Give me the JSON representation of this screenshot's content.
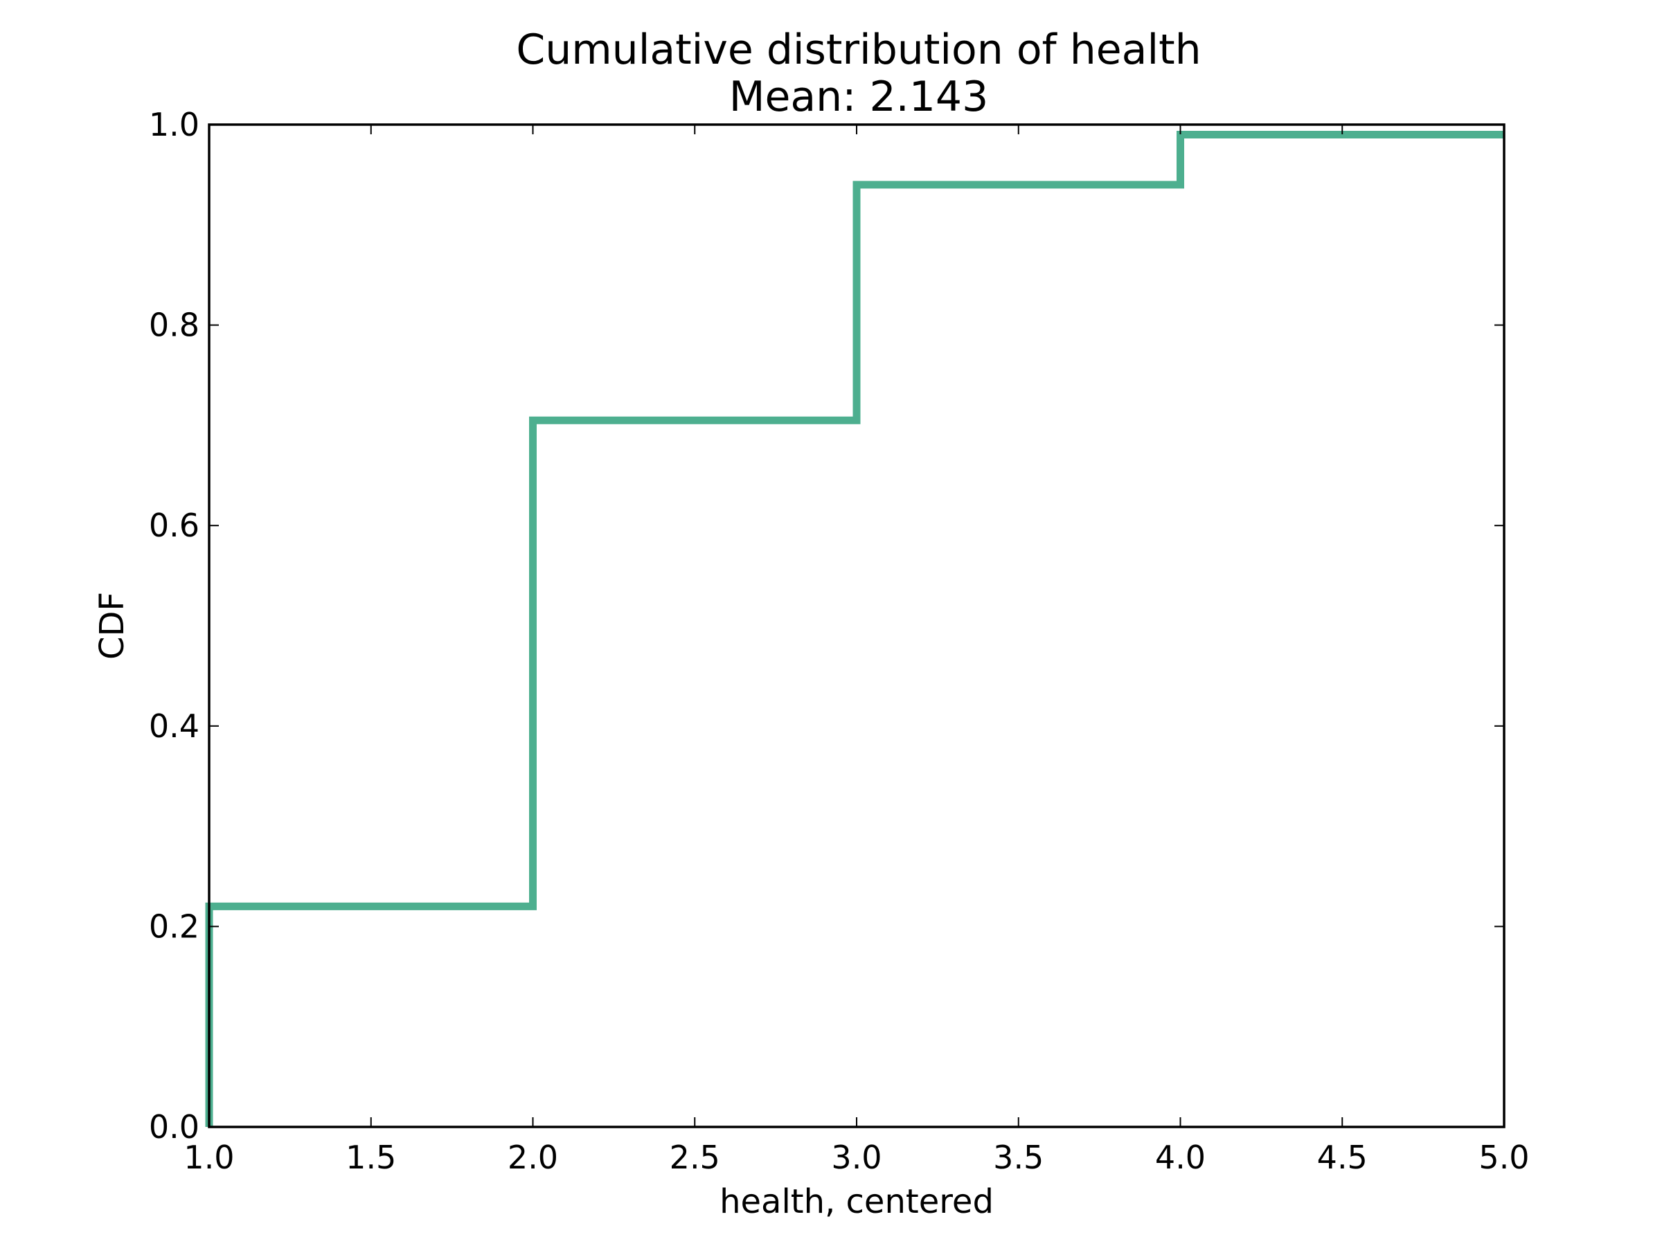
{
  "chart_data": {
    "type": "line",
    "subtype": "step-cdf",
    "title": "Cumulative distribution of health",
    "subtitle": "Mean: 2.143",
    "xlabel": "health, centered",
    "ylabel": "CDF",
    "xlim": [
      1.0,
      5.0
    ],
    "ylim": [
      0.0,
      1.0
    ],
    "x_ticks": [
      "1.0",
      "1.5",
      "2.0",
      "2.5",
      "3.0",
      "3.5",
      "4.0",
      "4.5",
      "5.0"
    ],
    "y_ticks": [
      "0.0",
      "0.2",
      "0.4",
      "0.6",
      "0.8",
      "1.0"
    ],
    "grid": false,
    "series": [
      {
        "color": "#4daf8f",
        "x": [
          1.0,
          2.0,
          3.0,
          4.0,
          5.0
        ],
        "y": [
          0.22,
          0.705,
          0.94,
          0.99,
          0.99
        ]
      }
    ]
  }
}
